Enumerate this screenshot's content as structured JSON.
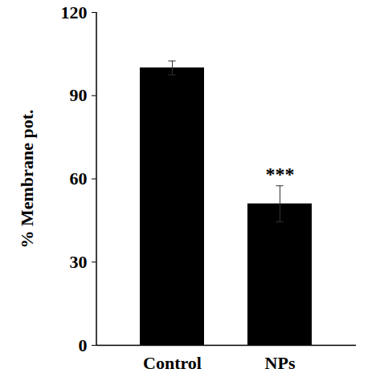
{
  "chart_data": {
    "type": "bar",
    "y_label": "% Membrane pot.",
    "categories": [
      "Control",
      "NPs"
    ],
    "values": [
      100,
      51
    ],
    "errors": [
      2.5,
      6.5
    ],
    "color": "#000000",
    "ylim": [
      0,
      120
    ],
    "yticks": [
      0,
      30,
      60,
      90,
      120
    ],
    "annotations": [
      {
        "category": "NPs",
        "text": "***"
      }
    ]
  }
}
